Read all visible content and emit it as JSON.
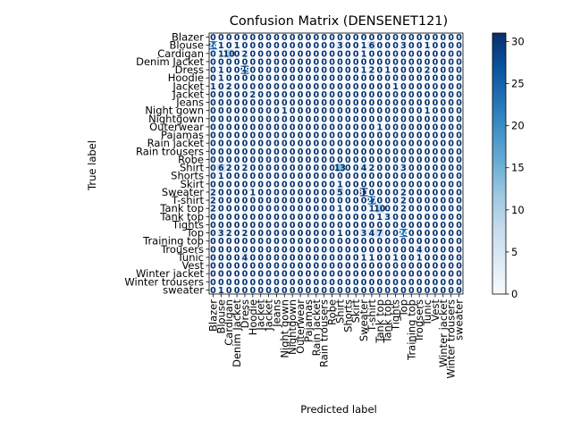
{
  "chart_data": {
    "type": "heatmap",
    "title": "Confusion Matrix (DENSENET121)",
    "xlabel": "Predicted label",
    "ylabel": "True label",
    "colormap": "Blues",
    "colorbar": {
      "min": 0,
      "max": 31,
      "ticks": [
        0,
        5,
        10,
        15,
        20,
        25,
        30
      ]
    },
    "categories": [
      "Blazer",
      "Blouse",
      "Cardigan",
      "Denim Jacket",
      "Dress",
      "Hoodie",
      "Jacket",
      "Jacket ",
      "Jeans",
      "Night gown",
      "Nightgown",
      "Outerwear",
      "Pajamas",
      "Rain jacket",
      "Rain trousers",
      "Robe",
      "Shirt",
      "Shorts",
      "Skirt",
      "Sweater",
      "T-shirt",
      "Tank top",
      "Tank top ",
      "Tights",
      "Top",
      "Training top",
      "Trousers",
      "Tunic",
      "Vest",
      "Winter jacket",
      "Winter trousers",
      "sweater"
    ],
    "matrix": [
      [
        0,
        0,
        0,
        0,
        0,
        0,
        0,
        0,
        0,
        0,
        0,
        0,
        0,
        0,
        0,
        0,
        0,
        0,
        0,
        0,
        0,
        0,
        0,
        0,
        0,
        0,
        0,
        0,
        0,
        0,
        0,
        0
      ],
      [
        24,
        1,
        0,
        1,
        0,
        0,
        0,
        0,
        0,
        0,
        0,
        0,
        0,
        0,
        0,
        0,
        3,
        0,
        0,
        1,
        6,
        0,
        0,
        0,
        3,
        0,
        0,
        1,
        0,
        0,
        0,
        0
      ],
      [
        0,
        1,
        10,
        0,
        2,
        0,
        0,
        0,
        0,
        0,
        0,
        0,
        0,
        0,
        0,
        0,
        0,
        0,
        0,
        1,
        0,
        0,
        0,
        0,
        0,
        0,
        0,
        0,
        0,
        0,
        0,
        0
      ],
      [
        0,
        0,
        0,
        0,
        0,
        0,
        0,
        0,
        0,
        0,
        0,
        0,
        0,
        0,
        0,
        0,
        0,
        0,
        0,
        0,
        0,
        0,
        0,
        0,
        0,
        0,
        0,
        0,
        0,
        0,
        0,
        0
      ],
      [
        0,
        1,
        0,
        0,
        29,
        0,
        0,
        0,
        0,
        0,
        0,
        0,
        0,
        0,
        0,
        0,
        0,
        0,
        0,
        1,
        2,
        0,
        1,
        0,
        0,
        0,
        0,
        2,
        0,
        0,
        0,
        0
      ],
      [
        0,
        1,
        0,
        0,
        0,
        0,
        0,
        0,
        0,
        0,
        0,
        0,
        0,
        0,
        0,
        0,
        0,
        0,
        0,
        0,
        0,
        0,
        0,
        0,
        0,
        0,
        0,
        0,
        0,
        0,
        0,
        0
      ],
      [
        1,
        0,
        2,
        0,
        0,
        0,
        0,
        0,
        0,
        0,
        0,
        0,
        0,
        0,
        0,
        0,
        0,
        0,
        0,
        0,
        0,
        0,
        0,
        1,
        0,
        0,
        0,
        0,
        0,
        0,
        0,
        0
      ],
      [
        0,
        0,
        0,
        0,
        0,
        2,
        0,
        0,
        0,
        0,
        0,
        0,
        0,
        0,
        0,
        0,
        0,
        0,
        0,
        0,
        0,
        0,
        0,
        0,
        0,
        0,
        0,
        0,
        0,
        0,
        0,
        0
      ],
      [
        0,
        0,
        0,
        0,
        0,
        0,
        0,
        0,
        0,
        0,
        0,
        0,
        0,
        0,
        0,
        0,
        0,
        0,
        0,
        0,
        0,
        0,
        0,
        0,
        0,
        0,
        0,
        0,
        0,
        0,
        0,
        0
      ],
      [
        0,
        0,
        0,
        0,
        0,
        0,
        0,
        0,
        0,
        1,
        0,
        0,
        0,
        0,
        0,
        0,
        0,
        0,
        0,
        0,
        0,
        0,
        0,
        0,
        0,
        0,
        0,
        1,
        0,
        0,
        0,
        0
      ],
      [
        0,
        0,
        0,
        0,
        0,
        0,
        0,
        0,
        0,
        0,
        0,
        0,
        0,
        0,
        0,
        0,
        0,
        0,
        0,
        0,
        0,
        0,
        0,
        0,
        0,
        0,
        0,
        0,
        0,
        0,
        0,
        0
      ],
      [
        0,
        0,
        0,
        0,
        0,
        0,
        0,
        0,
        0,
        0,
        0,
        0,
        0,
        0,
        0,
        0,
        0,
        0,
        0,
        0,
        0,
        1,
        0,
        0,
        0,
        0,
        0,
        0,
        0,
        0,
        0,
        0
      ],
      [
        0,
        0,
        0,
        0,
        0,
        0,
        0,
        0,
        0,
        0,
        0,
        0,
        0,
        0,
        0,
        0,
        0,
        0,
        0,
        0,
        0,
        0,
        0,
        0,
        0,
        0,
        0,
        0,
        0,
        0,
        0,
        0
      ],
      [
        0,
        0,
        0,
        0,
        0,
        0,
        0,
        0,
        0,
        0,
        0,
        0,
        0,
        0,
        0,
        0,
        0,
        0,
        0,
        0,
        0,
        0,
        0,
        0,
        0,
        0,
        0,
        0,
        0,
        0,
        0,
        0
      ],
      [
        0,
        0,
        0,
        0,
        0,
        0,
        0,
        0,
        0,
        0,
        0,
        0,
        0,
        0,
        0,
        0,
        0,
        0,
        0,
        0,
        0,
        0,
        0,
        0,
        0,
        0,
        0,
        0,
        0,
        0,
        0,
        0
      ],
      [
        0,
        0,
        0,
        0,
        0,
        0,
        0,
        0,
        0,
        0,
        0,
        0,
        0,
        0,
        0,
        0,
        0,
        0,
        0,
        0,
        0,
        0,
        0,
        0,
        0,
        0,
        0,
        0,
        0,
        0,
        0,
        0
      ],
      [
        0,
        6,
        2,
        0,
        2,
        0,
        0,
        0,
        0,
        0,
        0,
        0,
        0,
        0,
        0,
        0,
        13,
        0,
        0,
        4,
        2,
        0,
        0,
        0,
        3,
        0,
        0,
        0,
        0,
        0,
        0,
        0
      ],
      [
        0,
        1,
        0,
        0,
        0,
        0,
        0,
        0,
        0,
        0,
        0,
        0,
        0,
        0,
        0,
        0,
        0,
        0,
        0,
        0,
        0,
        0,
        0,
        0,
        0,
        0,
        0,
        0,
        0,
        0,
        0,
        0
      ],
      [
        0,
        0,
        0,
        0,
        0,
        0,
        0,
        0,
        0,
        0,
        0,
        0,
        0,
        0,
        0,
        0,
        1,
        0,
        0,
        0,
        0,
        0,
        0,
        0,
        0,
        0,
        0,
        0,
        0,
        0,
        0,
        0
      ],
      [
        2,
        0,
        0,
        0,
        0,
        1,
        0,
        0,
        0,
        0,
        0,
        0,
        0,
        0,
        0,
        0,
        5,
        0,
        0,
        31,
        0,
        0,
        0,
        0,
        2,
        0,
        0,
        0,
        0,
        0,
        0,
        0
      ],
      [
        2,
        0,
        0,
        0,
        0,
        0,
        0,
        0,
        0,
        0,
        0,
        0,
        0,
        0,
        0,
        0,
        0,
        0,
        0,
        0,
        27,
        0,
        0,
        0,
        2,
        0,
        0,
        0,
        0,
        0,
        0,
        0
      ],
      [
        2,
        0,
        0,
        0,
        0,
        0,
        0,
        0,
        0,
        0,
        0,
        0,
        0,
        0,
        0,
        0,
        1,
        0,
        0,
        0,
        1,
        10,
        0,
        0,
        2,
        0,
        0,
        0,
        0,
        0,
        0,
        0
      ],
      [
        0,
        0,
        0,
        0,
        0,
        0,
        0,
        0,
        0,
        0,
        0,
        0,
        0,
        0,
        0,
        0,
        0,
        0,
        0,
        0,
        0,
        1,
        3,
        0,
        0,
        0,
        0,
        0,
        0,
        0,
        0,
        0
      ],
      [
        0,
        0,
        0,
        0,
        0,
        0,
        0,
        0,
        0,
        0,
        0,
        0,
        0,
        0,
        0,
        0,
        0,
        0,
        0,
        0,
        0,
        0,
        0,
        0,
        0,
        0,
        0,
        0,
        0,
        0,
        0,
        0
      ],
      [
        0,
        3,
        2,
        0,
        2,
        0,
        0,
        0,
        0,
        0,
        0,
        0,
        0,
        0,
        0,
        0,
        1,
        0,
        0,
        3,
        4,
        7,
        0,
        0,
        24,
        0,
        0,
        0,
        0,
        0,
        0,
        0
      ],
      [
        0,
        0,
        0,
        0,
        0,
        0,
        0,
        0,
        0,
        0,
        0,
        0,
        0,
        0,
        0,
        0,
        0,
        0,
        0,
        0,
        0,
        0,
        0,
        0,
        0,
        0,
        0,
        0,
        0,
        0,
        0,
        0
      ],
      [
        0,
        0,
        0,
        0,
        0,
        0,
        0,
        0,
        0,
        0,
        0,
        0,
        0,
        0,
        0,
        0,
        0,
        0,
        0,
        0,
        0,
        0,
        0,
        0,
        0,
        0,
        4,
        0,
        0,
        0,
        0,
        0
      ],
      [
        0,
        0,
        0,
        0,
        4,
        0,
        0,
        0,
        0,
        0,
        0,
        0,
        0,
        0,
        0,
        0,
        0,
        0,
        0,
        1,
        1,
        0,
        0,
        1,
        0,
        0,
        1,
        0,
        0,
        0,
        0,
        0
      ],
      [
        0,
        0,
        0,
        0,
        0,
        0,
        0,
        0,
        0,
        0,
        0,
        0,
        0,
        0,
        0,
        0,
        0,
        0,
        0,
        0,
        0,
        0,
        0,
        0,
        0,
        0,
        0,
        0,
        0,
        0,
        0,
        0
      ],
      [
        0,
        0,
        0,
        0,
        0,
        0,
        0,
        0,
        0,
        0,
        0,
        0,
        0,
        0,
        0,
        0,
        0,
        0,
        0,
        0,
        0,
        0,
        0,
        0,
        0,
        0,
        0,
        0,
        0,
        0,
        0,
        0
      ],
      [
        0,
        0,
        0,
        0,
        0,
        0,
        0,
        0,
        0,
        0,
        0,
        0,
        0,
        0,
        0,
        0,
        0,
        0,
        0,
        0,
        0,
        0,
        0,
        0,
        0,
        0,
        0,
        0,
        0,
        0,
        0,
        0
      ],
      [
        0,
        1,
        0,
        0,
        0,
        0,
        0,
        0,
        0,
        0,
        0,
        0,
        0,
        0,
        0,
        0,
        0,
        0,
        0,
        0,
        0,
        0,
        0,
        0,
        0,
        0,
        0,
        0,
        0,
        0,
        0,
        0
      ]
    ]
  }
}
